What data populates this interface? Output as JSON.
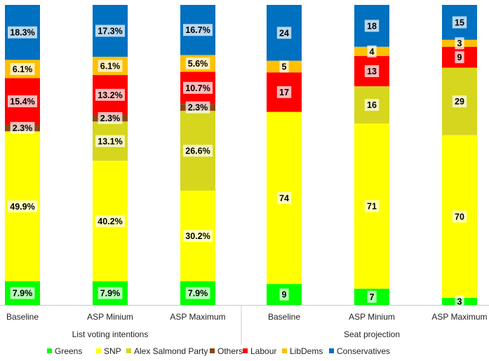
{
  "chart_data": {
    "type": "bar",
    "stacked": true,
    "normalized": true,
    "ylim": [
      0,
      1
    ],
    "grid": false,
    "legend_position": "bottom",
    "groups": [
      {
        "label": "List voting intentions",
        "categories": [
          "Baseline",
          "ASP Minium",
          "ASP Maximum"
        ]
      },
      {
        "label": "Seat projection",
        "categories": [
          "Baseline",
          "ASP Minium",
          "ASP Maximum"
        ]
      }
    ],
    "series": [
      {
        "name": "Greens",
        "color": "#00ff00",
        "values": [
          7.9,
          7.9,
          7.9,
          9,
          7,
          3
        ],
        "labels": [
          "7.9%",
          "7.9%",
          "7.9%",
          "9",
          "7",
          "3"
        ]
      },
      {
        "name": "SNP",
        "color": "#ffff00",
        "values": [
          49.9,
          40.2,
          30.2,
          74,
          71,
          70
        ],
        "labels": [
          "49.9%",
          "40.2%",
          "30.2%",
          "74",
          "71",
          "70"
        ]
      },
      {
        "name": "Alex Salmond Party",
        "color": "#d6d61e",
        "values": [
          0,
          13.1,
          26.6,
          0,
          16,
          29
        ],
        "labels": [
          "",
          "13.1%",
          "26.6%",
          "",
          "16",
          "29"
        ]
      },
      {
        "name": "Others",
        "color": "#8b4513",
        "values": [
          2.3,
          2.3,
          2.3,
          0,
          0,
          0
        ],
        "labels": [
          "2.3%",
          "2.3%",
          "2.3%",
          "",
          "",
          ""
        ]
      },
      {
        "name": "Labour",
        "color": "#ff0000",
        "values": [
          15.4,
          13.2,
          10.7,
          17,
          13,
          9
        ],
        "labels": [
          "15.4%",
          "13.2%",
          "10.7%",
          "17",
          "13",
          "9"
        ]
      },
      {
        "name": "LibDems",
        "color": "#ffc000",
        "values": [
          6.1,
          6.1,
          5.6,
          5,
          4,
          3
        ],
        "labels": [
          "6.1%",
          "6.1%",
          "5.6%",
          "5",
          "4",
          "3"
        ]
      },
      {
        "name": "Conservatives",
        "color": "#0070c0",
        "values": [
          18.3,
          17.3,
          16.7,
          24,
          18,
          15
        ],
        "labels": [
          "18.3%",
          "17.3%",
          "16.7%",
          "24",
          "18",
          "15"
        ]
      }
    ]
  }
}
